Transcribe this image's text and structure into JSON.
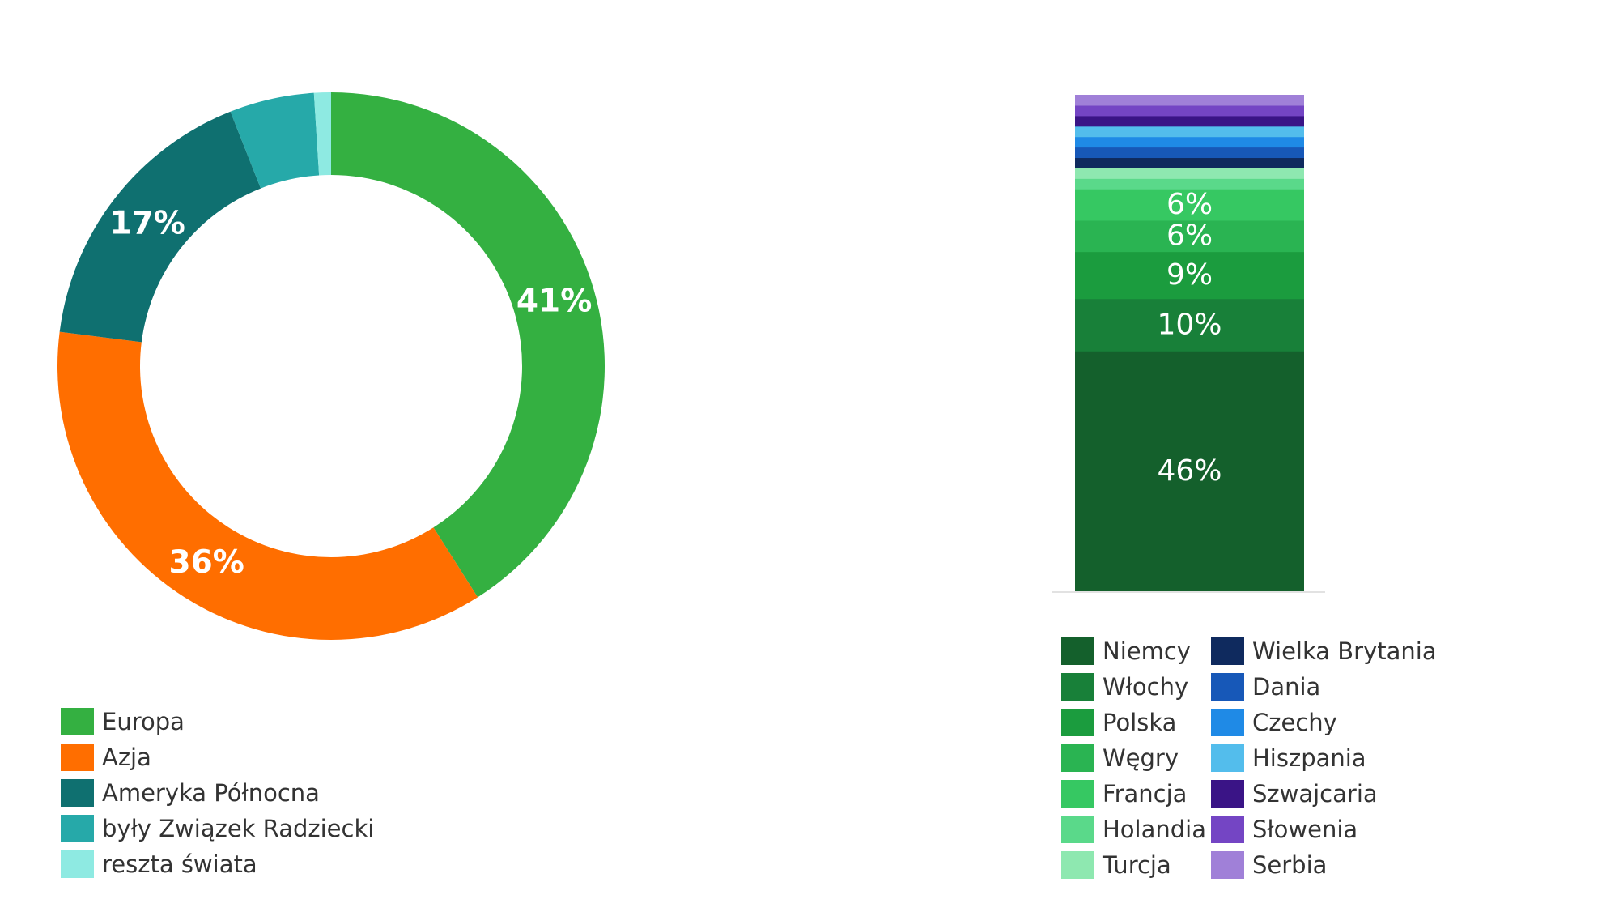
{
  "chart_data": [
    {
      "type": "pie",
      "subtype": "donut",
      "legend_position": "bottom-left",
      "slices": [
        {
          "label": "Europa",
          "value": 41,
          "value_label": "41%",
          "color": "#34b041"
        },
        {
          "label": "Azja",
          "value": 36,
          "value_label": "36%",
          "color": "#ff6e00"
        },
        {
          "label": "Ameryka Północna",
          "value": 17,
          "value_label": "17%",
          "color": "#0f7070"
        },
        {
          "label": "były Związek Radziecki",
          "value": 5,
          "value_label": "",
          "color": "#26a9a9"
        },
        {
          "label": "reszta świata",
          "value": 1,
          "value_label": "",
          "color": "#8eeae2"
        }
      ]
    },
    {
      "type": "bar",
      "subtype": "stacked-100",
      "legend_position": "bottom",
      "ylim": [
        0,
        100
      ],
      "segments": [
        {
          "label": "Niemcy",
          "value": 46,
          "value_label": "46%",
          "color": "#14602c"
        },
        {
          "label": "Włochy",
          "value": 10,
          "value_label": "10%",
          "color": "#188039"
        },
        {
          "label": "Polska",
          "value": 9,
          "value_label": "9%",
          "color": "#1b9c3e"
        },
        {
          "label": "Węgry",
          "value": 6,
          "value_label": "6%",
          "color": "#2ab452"
        },
        {
          "label": "Francja",
          "value": 6,
          "value_label": "6%",
          "color": "#36c862"
        },
        {
          "label": "Holandia",
          "value": 2,
          "value_label": "",
          "color": "#5ad98a"
        },
        {
          "label": "Turcja",
          "value": 2,
          "value_label": "",
          "color": "#8ee8b0"
        },
        {
          "label": "Wielka Brytania",
          "value": 2,
          "value_label": "",
          "color": "#0f2a5e"
        },
        {
          "label": "Dania",
          "value": 2,
          "value_label": "",
          "color": "#1758b8"
        },
        {
          "label": "Czechy",
          "value": 2,
          "value_label": "",
          "color": "#1f8ae6"
        },
        {
          "label": "Hiszpania",
          "value": 2,
          "value_label": "",
          "color": "#53bdec"
        },
        {
          "label": "Szwajcaria",
          "value": 2,
          "value_label": "",
          "color": "#3a1486"
        },
        {
          "label": "Słowenia",
          "value": 2,
          "value_label": "",
          "color": "#7445c4"
        },
        {
          "label": "Serbia",
          "value": 2,
          "value_label": "",
          "color": "#a080d8"
        }
      ]
    }
  ]
}
